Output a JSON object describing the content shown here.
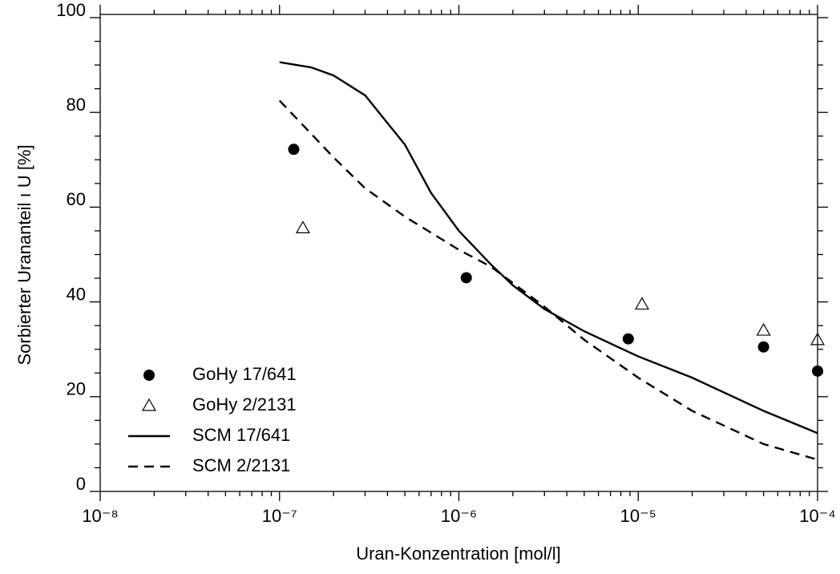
{
  "chart_data": {
    "type": "line",
    "xlabel": "Uran-Konzentration [mol/l]",
    "ylabel": "Sorbierter Urananteil ı U [%]",
    "xscale": "log",
    "xlim": [
      1e-08,
      0.0001
    ],
    "xticks": [
      {
        "value": 1e-08,
        "label": "10⁻⁸"
      },
      {
        "value": 1e-07,
        "label": "10⁻⁷"
      },
      {
        "value": 1e-06,
        "label": "10⁻⁶"
      },
      {
        "value": 1e-05,
        "label": "10⁻⁵"
      },
      {
        "value": 0.0001,
        "label": "10⁻⁴"
      }
    ],
    "ylim": [
      0,
      100
    ],
    "yticks": [
      0,
      20,
      40,
      60,
      80,
      100
    ],
    "legend": "lower left",
    "series": [
      {
        "name": "GoHy 17/641",
        "color": "#000000",
        "marker": "circle-filled",
        "linestyle": "none",
        "x": [
          1.2e-07,
          1.1e-06,
          8.8e-06,
          5e-05,
          0.0001
        ],
        "values": [
          72.2,
          45.1,
          32.2,
          30.5,
          25.4
        ]
      },
      {
        "name": "GoHy 2/2131",
        "color": "#000000",
        "marker": "triangle-open",
        "linestyle": "none",
        "x": [
          1.35e-07,
          1.05e-05,
          5e-05,
          0.0001
        ],
        "values": [
          55.6,
          39.5,
          34,
          32
        ]
      },
      {
        "name": "SCM 17/641",
        "color": "#000000",
        "marker": "none",
        "linestyle": "solid",
        "x": [
          1e-07,
          1.5e-07,
          2e-07,
          3e-07,
          5e-07,
          7e-07,
          1e-06,
          1.5e-06,
          2e-06,
          3e-06,
          5e-06,
          1e-05,
          2e-05,
          5e-05,
          0.0001
        ],
        "values": [
          90.6,
          89.5,
          87.8,
          83.6,
          73.2,
          63,
          55,
          48,
          43.5,
          38.5,
          33.8,
          28.5,
          24,
          17,
          12.3
        ]
      },
      {
        "name": "SCM 2/2131",
        "color": "#000000",
        "marker": "none",
        "linestyle": "dashed",
        "x": [
          1e-07,
          1.5e-07,
          2e-07,
          3e-07,
          5e-07,
          1e-06,
          1.5e-06,
          2e-06,
          3e-06,
          5e-06,
          1e-05,
          2e-05,
          5e-05,
          0.0001
        ],
        "values": [
          82.5,
          75.5,
          70.5,
          64,
          58,
          51,
          47.5,
          44,
          39,
          32,
          24,
          17,
          10,
          6.7
        ]
      }
    ]
  }
}
